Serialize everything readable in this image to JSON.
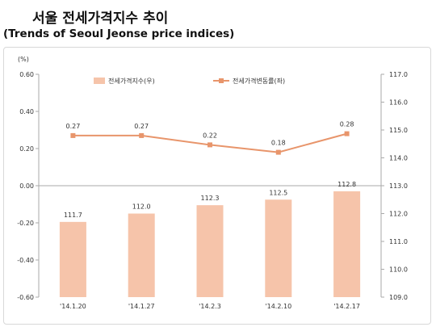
{
  "title_ko": "서울 전세가격지수 추이",
  "title_en": "(Trends of Seoul Jeonse price indices)",
  "chart_data": {
    "type": "bar+line",
    "categories": [
      "'14.1.20",
      "'14.1.27",
      "'14.2.3",
      "'14.2.10",
      "'14.2.17"
    ],
    "series": [
      {
        "name": "전세가격지수(우)",
        "type": "bar",
        "axis": "right",
        "values": [
          111.7,
          112.0,
          112.3,
          112.5,
          112.8
        ],
        "color": "#f6c4aa"
      },
      {
        "name": "전세가격변동률(좌)",
        "type": "line",
        "axis": "left",
        "values": [
          0.27,
          0.27,
          0.22,
          0.18,
          0.28
        ],
        "color": "#e8956b"
      }
    ],
    "left_axis": {
      "unit": "(%)",
      "range": [
        -0.6,
        0.6
      ],
      "ticks": [
        "0.60",
        "0.40",
        "0.20",
        "0.00",
        "-0.20",
        "-0.40",
        "-0.60"
      ]
    },
    "right_axis": {
      "range": [
        109.0,
        117.0
      ],
      "ticks": [
        "117.0",
        "116.0",
        "115.0",
        "114.0",
        "113.0",
        "112.0",
        "111.0",
        "110.0",
        "109.0"
      ]
    },
    "bar_labels": [
      "111.7",
      "112.0",
      "112.3",
      "112.5",
      "112.8"
    ],
    "line_labels": [
      "0.27",
      "0.27",
      "0.22",
      "0.18",
      "0.28"
    ],
    "legend_position": "top"
  }
}
